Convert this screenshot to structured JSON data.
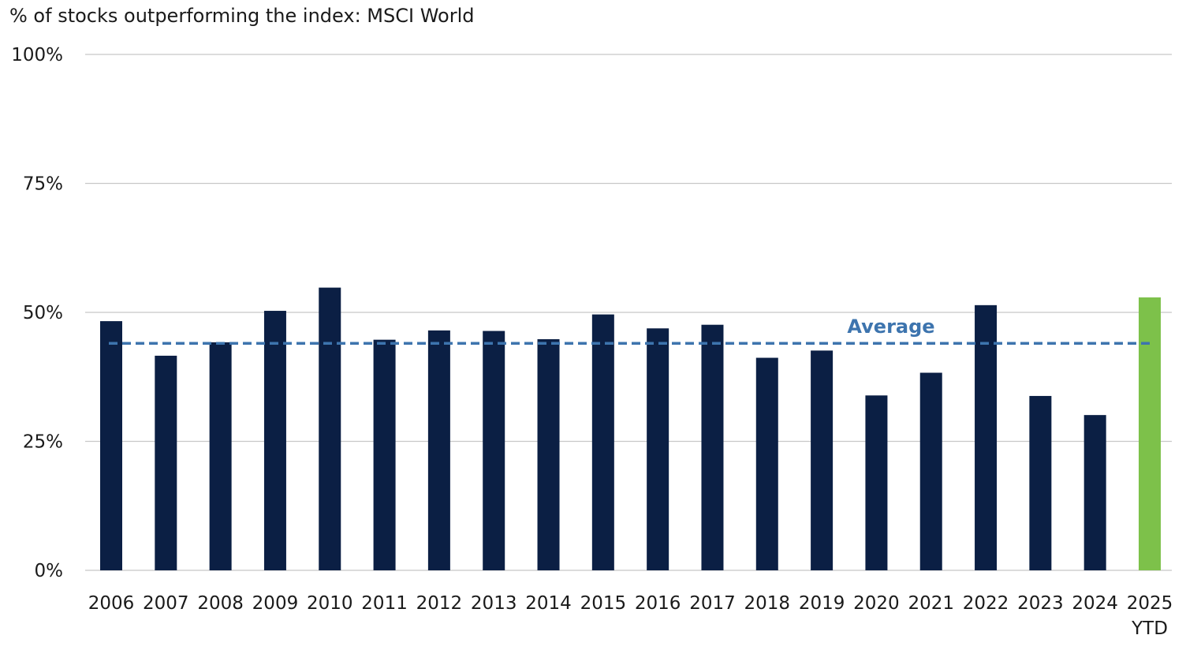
{
  "chart_data": {
    "type": "bar",
    "title": "% of stocks outperforming the index: MSCI World",
    "categories": [
      "2006",
      "2007",
      "2008",
      "2009",
      "2010",
      "2011",
      "2012",
      "2013",
      "2014",
      "2015",
      "2016",
      "2017",
      "2018",
      "2019",
      "2020",
      "2021",
      "2022",
      "2023",
      "2024",
      "2025"
    ],
    "category_sublabels": {
      "2025": "YTD"
    },
    "values": [
      48.3,
      41.6,
      44.2,
      50.3,
      54.8,
      44.7,
      46.5,
      46.4,
      44.8,
      49.6,
      46.9,
      47.6,
      41.2,
      42.6,
      33.9,
      38.3,
      51.4,
      33.8,
      30.1,
      52.9
    ],
    "yticks": [
      "0%",
      "25%",
      "50%",
      "75%",
      "100%"
    ],
    "ylim": [
      0,
      100
    ],
    "average": {
      "label": "Average",
      "value": 44.0
    },
    "grid": true,
    "colors": {
      "bar": "#0b1f44",
      "highlight": "#7dc14a",
      "average": "#3d74ae",
      "grid": "#c8c8c8"
    },
    "highlight_index": 19
  }
}
